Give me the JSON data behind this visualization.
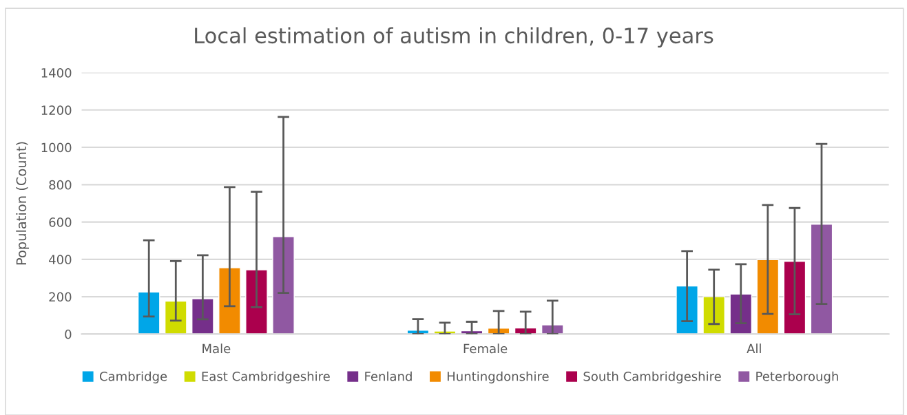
{
  "chart_data": {
    "type": "bar",
    "title": "Local estimation of autism in children, 0-17 years",
    "ylabel": "Population (Count)",
    "categories": [
      "Male",
      "Female",
      "All"
    ],
    "series": [
      {
        "name": "Cambridge",
        "color": "#00a6e8",
        "values": [
          225,
          21,
          257
        ],
        "errors": [
          [
            94,
            502
          ],
          [
            0,
            80
          ],
          [
            69,
            444
          ]
        ]
      },
      {
        "name": "East Cambridgeshire",
        "color": "#d0dc00",
        "values": [
          176,
          16,
          200
        ],
        "errors": [
          [
            72,
            391
          ],
          [
            0,
            61
          ],
          [
            54,
            345
          ]
        ]
      },
      {
        "name": "Fenland",
        "color": "#752f8a",
        "values": [
          189,
          18,
          214
        ],
        "errors": [
          [
            79,
            422
          ],
          [
            0,
            66
          ],
          [
            58,
            374
          ]
        ]
      },
      {
        "name": "Huntingdonshire",
        "color": "#f28b00",
        "values": [
          355,
          32,
          398
        ],
        "errors": [
          [
            149,
            787
          ],
          [
            0,
            124
          ],
          [
            108,
            691
          ]
        ]
      },
      {
        "name": "South Cambridgeshire",
        "color": "#ab004d",
        "values": [
          344,
          33,
          389
        ],
        "errors": [
          [
            144,
            762
          ],
          [
            0,
            120
          ],
          [
            106,
            675
          ]
        ]
      },
      {
        "name": "Peterborough",
        "color": "#9058a2",
        "values": [
          522,
          49,
          588
        ],
        "errors": [
          [
            220,
            1163
          ],
          [
            0,
            179
          ],
          [
            161,
            1018
          ]
        ]
      }
    ],
    "ylim": [
      0,
      1400
    ],
    "yticks": [
      0,
      200,
      400,
      600,
      800,
      1000,
      1200,
      1400
    ],
    "grid": "y",
    "legend": "bottom"
  }
}
